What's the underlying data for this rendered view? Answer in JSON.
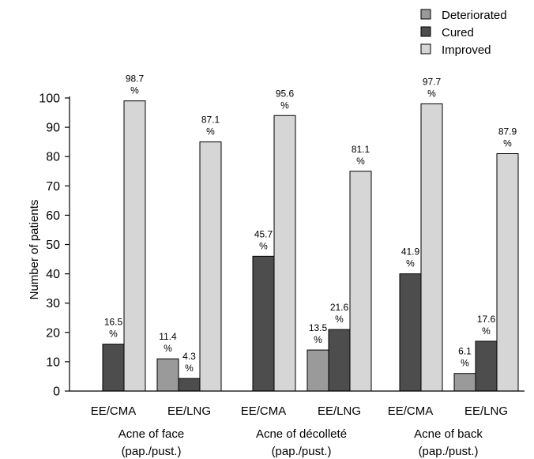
{
  "chart_data": {
    "type": "bar",
    "ylabel": "Number of patients",
    "ylim": [
      0,
      100
    ],
    "yticks": [
      0,
      10,
      20,
      30,
      40,
      50,
      60,
      70,
      80,
      90,
      100
    ],
    "legend_position": "top-right",
    "legend": [
      {
        "name": "Deteriorated",
        "color": "#9a9a9a"
      },
      {
        "name": "Cured",
        "color": "#4d4d4d"
      },
      {
        "name": "Improved",
        "color": "#d6d6d6"
      }
    ],
    "groups": [
      {
        "label_line1": "Acne of face",
        "label_line2": "(pap./pust.)",
        "subgroups": [
          {
            "label": "EE/CMA",
            "bars": [
              {
                "series": "Cured",
                "value": 16,
                "pct": "16.5",
                "unit": "%"
              },
              {
                "series": "Improved",
                "value": 99,
                "pct": "98.7",
                "unit": "%"
              }
            ]
          },
          {
            "label": "EE/LNG",
            "bars": [
              {
                "series": "Deteriorated",
                "value": 11,
                "pct": "11.4",
                "unit": "%"
              },
              {
                "series": "Cured",
                "value": 4.3,
                "pct": "4.3",
                "unit": "%"
              },
              {
                "series": "Improved",
                "value": 85,
                "pct": "87.1",
                "unit": "%"
              }
            ]
          }
        ]
      },
      {
        "label_line1": "Acne of décolleté",
        "label_line2": "(pap./pust.)",
        "subgroups": [
          {
            "label": "EE/CMA",
            "bars": [
              {
                "series": "Cured",
                "value": 46,
                "pct": "45.7",
                "unit": "%"
              },
              {
                "series": "Improved",
                "value": 94,
                "pct": "95.6",
                "unit": "%"
              }
            ]
          },
          {
            "label": "EE/LNG",
            "bars": [
              {
                "series": "Deteriorated",
                "value": 14,
                "pct": "13.5",
                "unit": "%"
              },
              {
                "series": "Cured",
                "value": 21,
                "pct": "21.6",
                "unit": "%"
              },
              {
                "series": "Improved",
                "value": 75,
                "pct": "81.1",
                "unit": "%"
              }
            ]
          }
        ]
      },
      {
        "label_line1": "Acne of back",
        "label_line2": "(pap./pust.)",
        "subgroups": [
          {
            "label": "EE/CMA",
            "bars": [
              {
                "series": "Cured",
                "value": 40,
                "pct": "41.9",
                "unit": "%"
              },
              {
                "series": "Improved",
                "value": 98,
                "pct": "97.7",
                "unit": "%"
              }
            ]
          },
          {
            "label": "EE/LNG",
            "bars": [
              {
                "series": "Deteriorated",
                "value": 6,
                "pct": "6.1",
                "unit": "%"
              },
              {
                "series": "Cured",
                "value": 17,
                "pct": "17.6",
                "unit": "%"
              },
              {
                "series": "Improved",
                "value": 81,
                "pct": "87.9",
                "unit": "%"
              }
            ]
          }
        ]
      }
    ]
  }
}
